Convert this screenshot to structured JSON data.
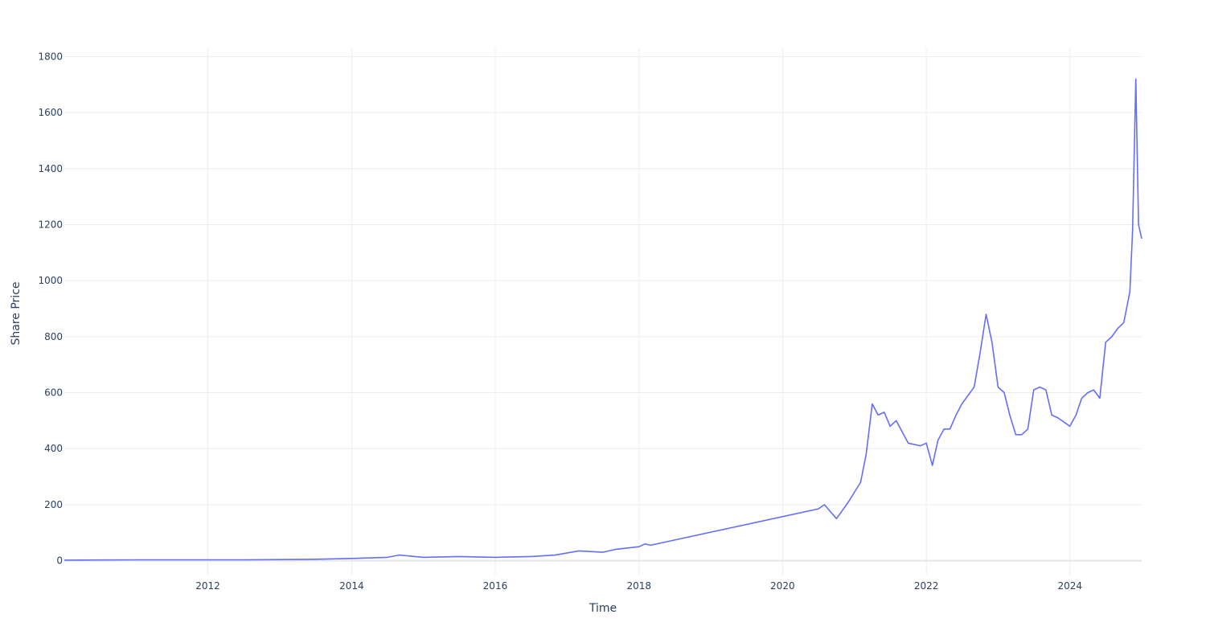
{
  "chart_data": {
    "type": "line",
    "title": "",
    "xlabel": "Time",
    "ylabel": "Share Price",
    "x_type": "date",
    "xlim": [
      "2010-01-01",
      "2024-12-31"
    ],
    "ylim": [
      -50,
      1830
    ],
    "x_ticks": [
      "2012",
      "2014",
      "2016",
      "2018",
      "2020",
      "2022",
      "2024"
    ],
    "y_ticks": [
      0,
      200,
      400,
      600,
      800,
      1000,
      1200,
      1400,
      1600,
      1800
    ],
    "grid": true,
    "legend": "none",
    "line_color": "#636efa",
    "series": [
      {
        "x": [
          "2010-01-01",
          "2010-07-01",
          "2011-01-01",
          "2011-07-01",
          "2012-01-01",
          "2012-07-01",
          "2013-01-01",
          "2013-07-01",
          "2014-01-01",
          "2014-07-01",
          "2014-09-01",
          "2015-01-01",
          "2015-07-01",
          "2016-01-01",
          "2016-07-01",
          "2016-11-01",
          "2017-03-01",
          "2017-07-01",
          "2017-09-01",
          "2018-01-01",
          "2018-02-01",
          "2018-03-01",
          "2020-07-01",
          "2020-08-01",
          "2020-10-01",
          "2020-12-01",
          "2021-02-01",
          "2021-03-01",
          "2021-04-01",
          "2021-05-01",
          "2021-06-01",
          "2021-07-01",
          "2021-08-01",
          "2021-10-01",
          "2021-12-01",
          "2022-01-01",
          "2022-02-01",
          "2022-03-01",
          "2022-04-01",
          "2022-05-01",
          "2022-06-01",
          "2022-07-01",
          "2022-08-01",
          "2022-09-01",
          "2022-10-01",
          "2022-11-01",
          "2022-12-01",
          "2023-01-01",
          "2023-02-01",
          "2023-03-01",
          "2023-04-01",
          "2023-05-01",
          "2023-06-01",
          "2023-07-01",
          "2023-08-01",
          "2023-09-01",
          "2023-10-01",
          "2023-11-01",
          "2024-01-01",
          "2024-02-01",
          "2024-03-01",
          "2024-04-01",
          "2024-05-01",
          "2024-06-01",
          "2024-07-01",
          "2024-08-01",
          "2024-09-01",
          "2024-10-01",
          "2024-11-01",
          "2024-11-15",
          "2024-12-01",
          "2024-12-15",
          "2024-12-31"
        ],
        "y": [
          2,
          2.5,
          3,
          3,
          3,
          3,
          4,
          5,
          8,
          12,
          20,
          12,
          15,
          12,
          15,
          20,
          35,
          30,
          40,
          50,
          60,
          55,
          185,
          200,
          150,
          210,
          280,
          380,
          560,
          520,
          530,
          480,
          500,
          420,
          410,
          420,
          340,
          430,
          470,
          470,
          520,
          560,
          590,
          620,
          740,
          880,
          780,
          620,
          600,
          520,
          450,
          450,
          470,
          610,
          620,
          610,
          520,
          510,
          480,
          520,
          580,
          600,
          610,
          580,
          780,
          800,
          830,
          850,
          960,
          1180,
          1720,
          1200,
          1150
        ]
      }
    ]
  }
}
